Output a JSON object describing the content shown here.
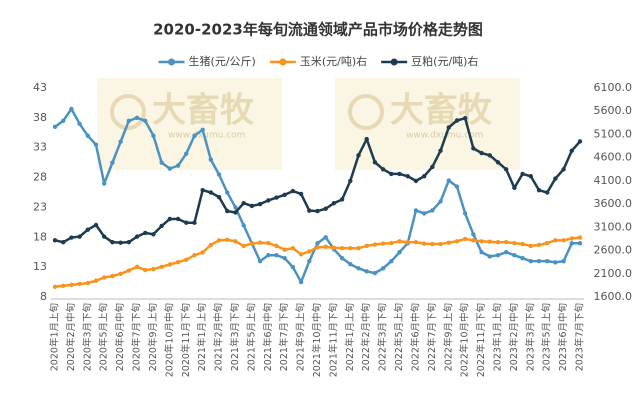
{
  "chart_data": {
    "type": "line",
    "title": "2020-2023年每旬流通领域产品市场价格走势图",
    "watermark": {
      "text": "大畜牧",
      "url": "www.dxumu.com"
    },
    "categories": [
      "2020年1月上旬",
      null,
      "2020年2月中旬",
      null,
      "2020年3月下旬",
      null,
      "2020年5月上旬",
      null,
      "2020年6月中旬",
      null,
      "2020年7月下旬",
      null,
      "2020年9月上旬",
      null,
      "2020年10月中旬",
      null,
      "2020年11月下旬",
      null,
      "2021年1月上旬",
      null,
      "2021年2月中旬",
      null,
      "2021年3月下旬",
      null,
      "2021年5月上旬",
      null,
      "2021年6月中旬",
      null,
      "2021年7月下旬",
      null,
      "2021年9月上旬",
      null,
      "2021年10月中旬",
      null,
      "2021年11月下旬",
      null,
      "2022年1月上旬",
      null,
      "2022年2月中旬",
      null,
      "2022年3月下旬",
      null,
      "2022年5月上旬",
      null,
      "2022年6月中旬",
      null,
      "2022年7月下旬",
      null,
      "2022年9月上旬",
      null,
      "2022年10月中旬",
      null,
      "2022年11月下旬",
      null,
      "2023年1月上旬",
      null,
      "2023年2月中旬",
      null,
      "2023年3月下旬",
      null,
      "2023年5月上旬",
      null,
      "2023年6月中旬",
      null,
      "2023年7月下旬"
    ],
    "series": [
      {
        "name": "生猪(元/公斤)",
        "color": "#4b92c3",
        "values": [
          36.5,
          37.5,
          39.5,
          37,
          35,
          33.5,
          27,
          30.5,
          34,
          37.5,
          38,
          37.5,
          35,
          30.5,
          29.5,
          30,
          32,
          35,
          36,
          31,
          28.5,
          25.5,
          23,
          20,
          17,
          14,
          15,
          15,
          14.5,
          13,
          10.5,
          14,
          17,
          18,
          16,
          14.5,
          13.5,
          12.8,
          12.3,
          12,
          12.8,
          14,
          15.5,
          17,
          22.5,
          22,
          22.5,
          24,
          27.5,
          26.5,
          22,
          18.5,
          15.5,
          14.8,
          15,
          15.5,
          15,
          14.5,
          14,
          14,
          14,
          13.8,
          14,
          17,
          17
        ]
      },
      {
        "name": "玉米(元/吨)右",
        "color": "#f7941d",
        "axis": "y2",
        "values": [
          1820,
          1840,
          1860,
          1880,
          1900,
          1950,
          2020,
          2050,
          2100,
          2170,
          2250,
          2180,
          2200,
          2250,
          2300,
          2350,
          2400,
          2500,
          2560,
          2720,
          2820,
          2830,
          2800,
          2700,
          2750,
          2770,
          2760,
          2700,
          2620,
          2650,
          2520,
          2580,
          2670,
          2680,
          2660,
          2650,
          2650,
          2650,
          2700,
          2730,
          2750,
          2760,
          2800,
          2780,
          2780,
          2750,
          2740,
          2740,
          2770,
          2800,
          2850,
          2820,
          2800,
          2790,
          2780,
          2780,
          2760,
          2740,
          2700,
          2720,
          2760,
          2820,
          2820,
          2860,
          2880
        ]
      },
      {
        "name": "豆粕(元/吨)右",
        "color": "#1f3b4f",
        "axis": "y2",
        "values": [
          2820,
          2780,
          2880,
          2900,
          3050,
          3150,
          2900,
          2780,
          2770,
          2780,
          2900,
          2980,
          2950,
          3130,
          3280,
          3280,
          3200,
          3200,
          3900,
          3850,
          3750,
          3450,
          3420,
          3620,
          3560,
          3600,
          3680,
          3740,
          3800,
          3880,
          3820,
          3460,
          3450,
          3500,
          3620,
          3700,
          4100,
          4650,
          5000,
          4500,
          4350,
          4250,
          4250,
          4200,
          4100,
          4200,
          4400,
          4750,
          5250,
          5400,
          5450,
          4800,
          4700,
          4650,
          4500,
          4350,
          3950,
          4250,
          4200,
          3900,
          3850,
          4150,
          4350,
          4750,
          4950
        ]
      }
    ],
    "ylim": [
      8,
      43
    ],
    "yticks": [
      8,
      13,
      18,
      23,
      28,
      33,
      38,
      43
    ],
    "y2lim": [
      1600,
      6100
    ],
    "y2ticks": [
      {
        "value": 1600,
        "label": "1600.0"
      },
      {
        "value": 2100,
        "label": "2100.0"
      },
      {
        "value": 2600,
        "label": "2600.0"
      },
      {
        "value": 3100,
        "label": "3100.0"
      },
      {
        "value": 3600,
        "label": "3600.0"
      },
      {
        "value": 4100,
        "label": "4100.0"
      },
      {
        "value": 4600,
        "label": "4600.0"
      },
      {
        "value": 5100,
        "label": "5100.0"
      },
      {
        "value": 5600,
        "label": "5600.0"
      },
      {
        "value": 6100,
        "label": "6100.0"
      }
    ],
    "grid": false,
    "legend": "top"
  }
}
